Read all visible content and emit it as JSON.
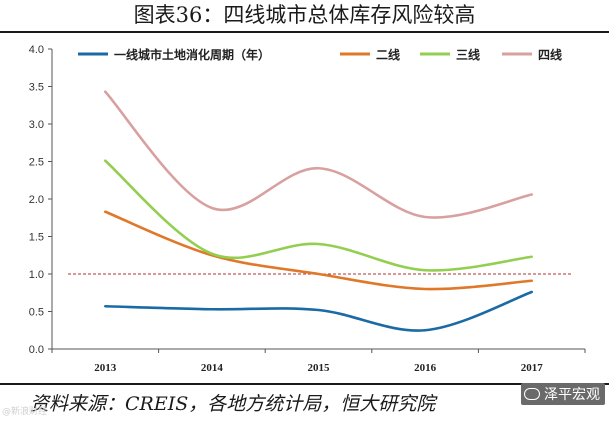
{
  "header": {
    "title": "图表36：四线城市总体库存风险较高"
  },
  "footer": {
    "source": "资料来源：CREIS，各地方统计局，恒大研究院",
    "watermark_right": "泽平宏观",
    "watermark_left": "@新浪财经"
  },
  "chart_data": {
    "type": "line",
    "categories": [
      "2013",
      "2014",
      "2015",
      "2016",
      "2017"
    ],
    "ylim": [
      0,
      4.0
    ],
    "yticks": [
      "0.0",
      "0.5",
      "1.0",
      "1.5",
      "2.0",
      "2.5",
      "3.0",
      "3.5",
      "4.0"
    ],
    "reference_line": 1.0,
    "grid": false,
    "legend_position": "top",
    "series": [
      {
        "name": "一线城市土地消化周期（年）",
        "color": "#1a6aa5",
        "values": [
          0.57,
          0.53,
          0.52,
          0.25,
          0.76
        ]
      },
      {
        "name": "二线",
        "color": "#e0782a",
        "values": [
          1.83,
          1.25,
          1.0,
          0.8,
          0.91
        ]
      },
      {
        "name": "三线",
        "color": "#92cf50",
        "values": [
          2.51,
          1.27,
          1.4,
          1.05,
          1.23
        ]
      },
      {
        "name": "四线",
        "color": "#d9a0a0",
        "values": [
          3.43,
          1.88,
          2.41,
          1.76,
          2.06
        ]
      }
    ],
    "reference_color": "#b03030",
    "axis_color": "#555555"
  }
}
